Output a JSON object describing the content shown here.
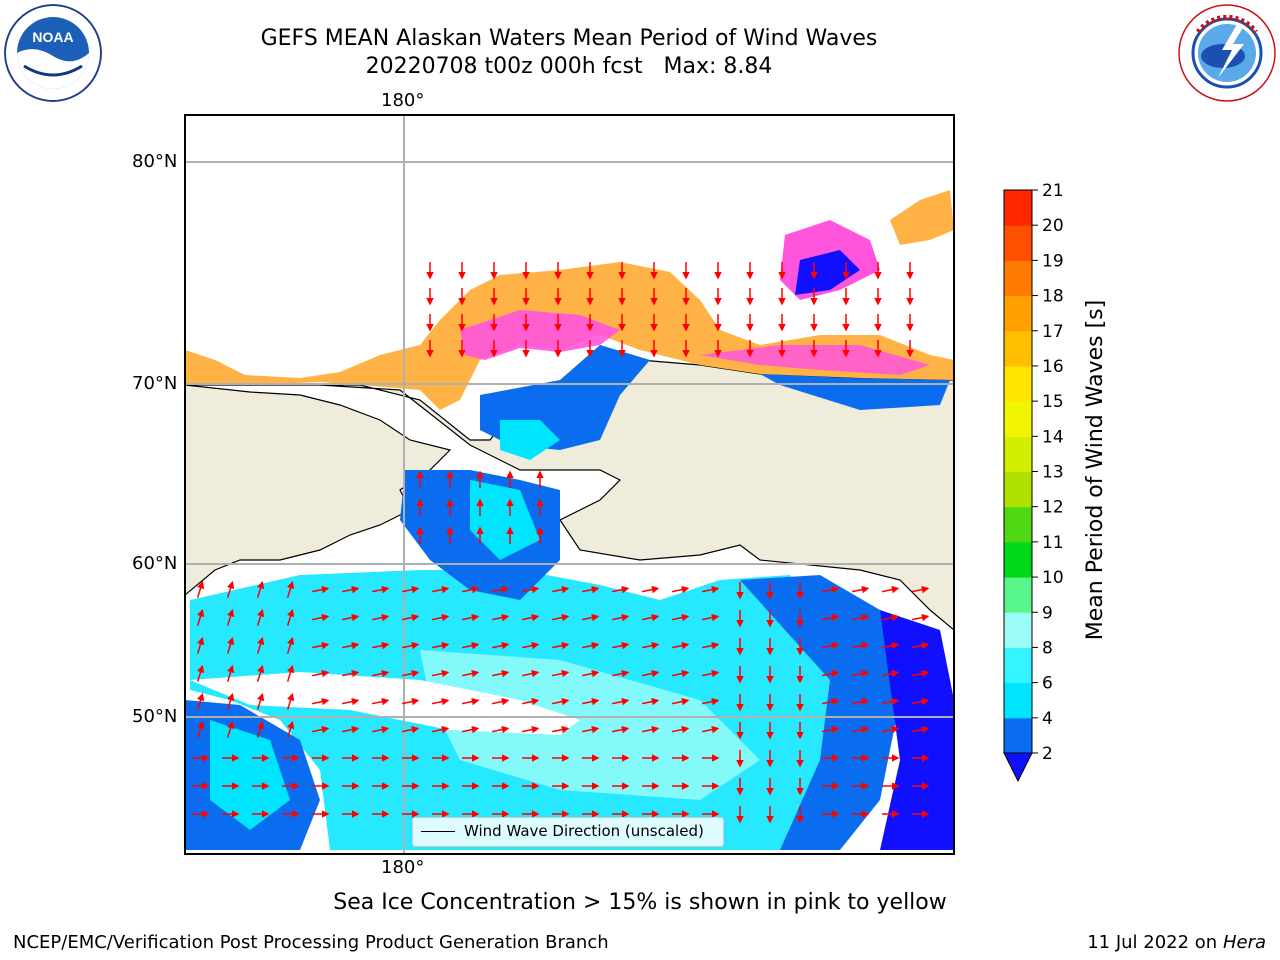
{
  "title": {
    "line1": "GEFS MEAN Alaskan Waters Mean Period of Wind Waves",
    "line2": "20220708 t00z 000h fcst   Max: 8.84"
  },
  "logos": {
    "left": {
      "icon": "noaa-logo-icon",
      "text": "NOAA",
      "ring_text": "NATIONAL OCEANIC AND ATMOSPHERIC ADMINISTRATION · U.S. DEPARTMENT OF COMMERCE"
    },
    "right": {
      "icon": "nws-logo-icon",
      "ring_text": "NATIONAL WEATHER SERVICE"
    }
  },
  "map": {
    "lon_labels_top": [
      "180°"
    ],
    "lon_labels_bottom": [
      "180°"
    ],
    "lat_labels": [
      "80°N",
      "70°N",
      "60°N",
      "50°N"
    ],
    "legend": {
      "label": "Wind Wave Direction (unscaled)"
    },
    "colors": {
      "land": "#efecdb",
      "ice_pink": "#ff55dd",
      "ice_orange": "#ffb347",
      "arrow": "#ff0000"
    }
  },
  "colorbar": {
    "label": "Mean Period of Wind Waves [s]",
    "ticks": [
      "21",
      "20",
      "19",
      "18",
      "17",
      "16",
      "15",
      "14",
      "13",
      "12",
      "11",
      "10",
      "9",
      "8",
      "6",
      "4",
      "2"
    ],
    "levels": [
      2,
      4,
      6,
      8,
      9,
      10,
      11,
      12,
      13,
      14,
      15,
      16,
      17,
      18,
      19,
      20,
      21
    ],
    "colors": [
      "#0a6df0",
      "#00e5ff",
      "#33f5ff",
      "#9bfcf8",
      "#57f58a",
      "#00d81a",
      "#4fd814",
      "#aee000",
      "#d3ef00",
      "#f2f500",
      "#ffe600",
      "#ffbf00",
      "#ff9f00",
      "#ff7a00",
      "#ff5000",
      "#ff2600"
    ],
    "extend_color": "#1010ff"
  },
  "footer": {
    "caption": "Sea Ice Concentration > 15% is shown in pink to yellow",
    "left": "NCEP/EMC/Verification Post Processing Product Generation Branch",
    "right_date": "11 Jul 2022 on",
    "right_machine": "Hera"
  }
}
